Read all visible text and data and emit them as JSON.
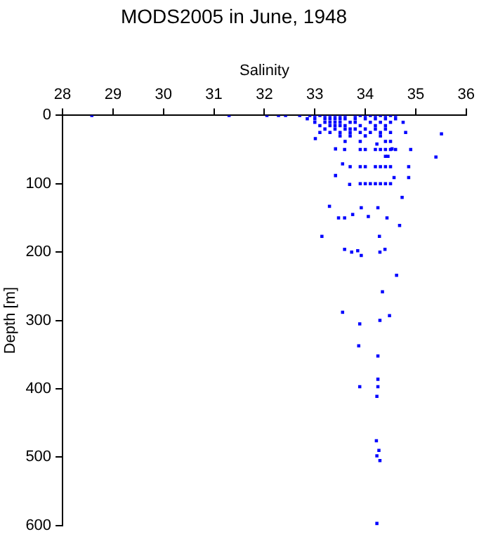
{
  "chart_data": {
    "type": "scatter",
    "title": "MODS2005 in June, 1948",
    "xlabel": "Salinity",
    "ylabel": "Depth [m]",
    "xlim": [
      28,
      36
    ],
    "xticks": [
      28,
      29,
      30,
      31,
      32,
      33,
      34,
      35,
      36
    ],
    "ylim": [
      600,
      0
    ],
    "yticks": [
      0,
      100,
      200,
      300,
      400,
      500,
      600
    ],
    "grid": false,
    "legend": false,
    "marker": "square",
    "series": [
      {
        "color": "#0000ff",
        "x": [
          28.58,
          31.3,
          32.05,
          32.28,
          32.42,
          32.7,
          32.9,
          33.0,
          33.1,
          33.2,
          33.3,
          33.4,
          33.5,
          33.6,
          33.8,
          33.9,
          34.0,
          34.1,
          34.2,
          34.3,
          34.4,
          34.5,
          34.6,
          32.85,
          33.0,
          33.2,
          33.3,
          33.4,
          33.5,
          33.6,
          33.8,
          34.0,
          34.2,
          34.4,
          34.6,
          33.0,
          33.2,
          33.3,
          33.4,
          33.5,
          33.7,
          33.8,
          34.1,
          34.3,
          34.5,
          34.75,
          33.1,
          33.3,
          33.4,
          33.5,
          33.6,
          33.9,
          34.2,
          34.4,
          33.2,
          33.4,
          33.6,
          33.7,
          33.8,
          34.0,
          34.2,
          34.4,
          33.1,
          33.3,
          33.5,
          33.7,
          33.9,
          34.1,
          34.3,
          34.5,
          34.8,
          33.5,
          33.7,
          34.0,
          34.3,
          33.6,
          33.9,
          34.4,
          34.5,
          33.9,
          34.0,
          34.2,
          34.3,
          34.4,
          34.5,
          34.6,
          34.4,
          34.45,
          34.0,
          34.2,
          34.3,
          34.4,
          34.5,
          33.9,
          34.0,
          34.1,
          34.2,
          34.3,
          34.4,
          34.5,
          35.51,
          35.4,
          33.01,
          33.41,
          33.59,
          33.55,
          33.7,
          33.41,
          33.69,
          33.9,
          34.23,
          34.53,
          34.9,
          34.86,
          34.86,
          34.57,
          34.73,
          33.29,
          33.92,
          34.25,
          33.47,
          33.59,
          33.75,
          34.06,
          34.43,
          34.68,
          33.14,
          34.28,
          33.59,
          33.73,
          33.85,
          33.92,
          34.29,
          34.39,
          34.62,
          34.34,
          33.55,
          34.48,
          33.89,
          34.29,
          33.87,
          34.25,
          33.89,
          34.25,
          34.25,
          34.23,
          34.22,
          34.27,
          34.23,
          34.29,
          34.23
        ],
        "values": [
          0,
          0,
          0,
          0,
          0,
          0,
          0,
          0,
          0,
          0,
          0,
          0,
          0,
          0,
          0,
          0,
          0,
          0,
          0,
          0,
          0,
          0,
          0,
          5,
          5,
          5,
          5,
          5,
          5,
          5,
          5,
          5,
          5,
          5,
          5,
          10,
          10,
          10,
          10,
          10,
          10,
          10,
          10,
          10,
          10,
          10,
          15,
          15,
          15,
          15,
          15,
          15,
          15,
          15,
          20,
          20,
          20,
          20,
          20,
          20,
          20,
          20,
          25,
          25,
          25,
          25,
          25,
          25,
          25,
          25,
          25,
          30,
          30,
          30,
          30,
          38,
          38,
          38,
          38,
          50,
          50,
          50,
          50,
          50,
          50,
          50,
          60,
          60,
          75,
          75,
          75,
          75,
          75,
          100,
          100,
          100,
          100,
          100,
          100,
          100,
          27,
          61,
          34,
          49,
          50,
          71,
          75,
          88,
          101,
          75,
          42,
          49,
          50,
          75,
          91,
          91,
          120,
          133,
          135,
          135,
          150,
          150,
          145,
          148,
          150,
          161,
          177,
          177,
          196,
          200,
          198,
          205,
          200,
          196,
          234,
          258,
          288,
          293,
          305,
          300,
          337,
          352,
          397,
          386,
          397,
          411,
          476,
          490,
          498,
          505,
          597
        ]
      }
    ]
  }
}
